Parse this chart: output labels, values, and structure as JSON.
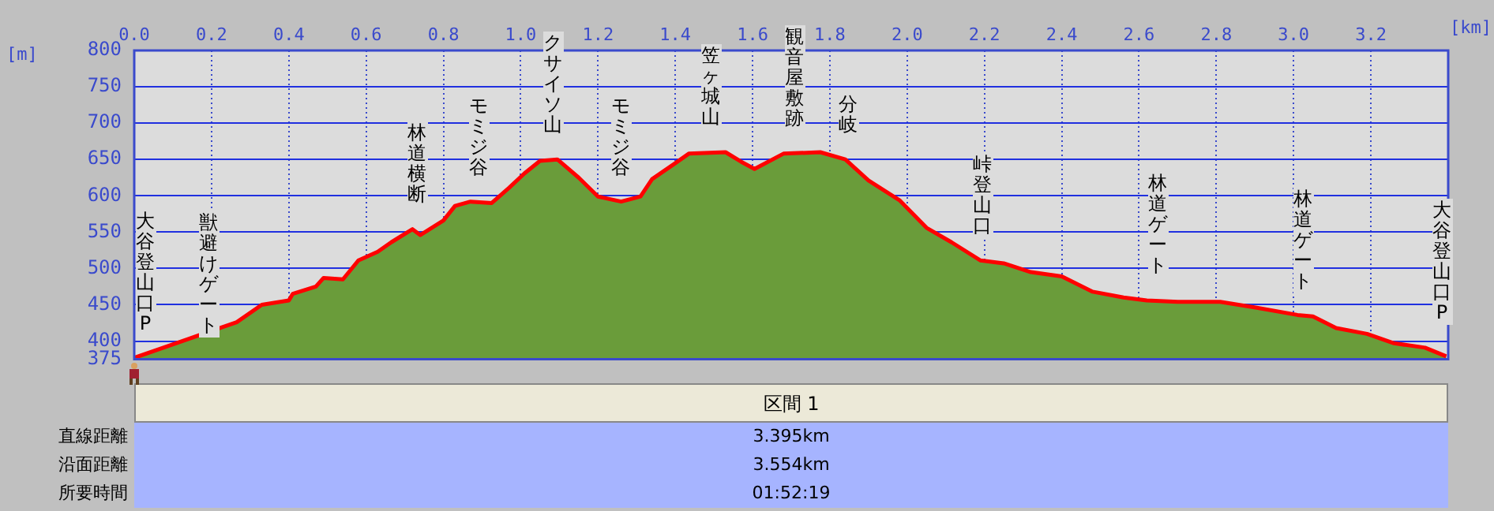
{
  "chart_data": {
    "type": "area",
    "xlabel": "[km]",
    "ylabel": "[m]",
    "x": [
      0,
      0.14,
      0.265,
      0.33,
      0.4,
      0.41,
      0.47,
      0.49,
      0.54,
      0.58,
      0.63,
      0.665,
      0.72,
      0.74,
      0.8,
      0.83,
      0.87,
      0.925,
      0.97,
      1.01,
      1.05,
      1.095,
      1.15,
      1.2,
      1.26,
      1.31,
      1.34,
      1.395,
      1.435,
      1.53,
      1.57,
      1.605,
      1.68,
      1.775,
      1.84,
      1.9,
      1.98,
      2.05,
      2.115,
      2.19,
      2.25,
      2.32,
      2.4,
      2.48,
      2.56,
      2.62,
      2.7,
      2.81,
      2.905,
      3.01,
      3.05,
      3.11,
      3.19,
      3.26,
      3.34,
      3.395
    ],
    "series": [
      {
        "color": "#6a9c3a",
        "values": [
          377,
          403,
          426,
          450,
          456,
          465,
          475,
          487,
          485,
          511,
          523,
          536,
          554,
          546,
          566,
          586,
          592,
          590,
          611,
          631,
          648,
          650,
          625,
          599,
          592,
          599,
          623,
          643,
          658,
          660,
          647,
          637,
          658,
          660,
          650,
          621,
          594,
          556,
          536,
          511,
          507,
          495,
          489,
          468,
          460,
          456,
          454,
          454,
          446,
          436,
          434,
          418,
          410,
          397,
          391,
          379
        ]
      }
    ],
    "xlim": [
      0,
      3.4
    ],
    "xticks": [
      {
        "value": 0,
        "label": "0.0"
      },
      0.2,
      0.4,
      0.6,
      0.8,
      {
        "value": 1,
        "label": "1.0"
      },
      1.2,
      1.4,
      1.6,
      1.8,
      {
        "value": 2,
        "label": "2.0"
      },
      2.2,
      2.4,
      2.6,
      2.8,
      {
        "value": 3,
        "label": "3.0"
      },
      3.2
    ],
    "ylim": [
      375,
      800
    ],
    "yticks": [
      375,
      400,
      450,
      500,
      550,
      600,
      650,
      700,
      750,
      800
    ],
    "grid": true,
    "legend": false,
    "annotations": [
      "大谷登山口P",
      "獣避けゲート",
      "林道横断",
      "モミジ谷",
      "クサイソ山",
      "モミジ谷",
      "笠ヶ城山",
      "観音屋敷跡",
      "分岐",
      "峠登山口",
      "林道ゲート",
      "林道ゲート",
      "大谷登山口P",
      "区間 1",
      "直線距離",
      "3.395km",
      "沿面距離",
      "3.554km",
      "所要時間",
      "01:52:19"
    ]
  }
}
